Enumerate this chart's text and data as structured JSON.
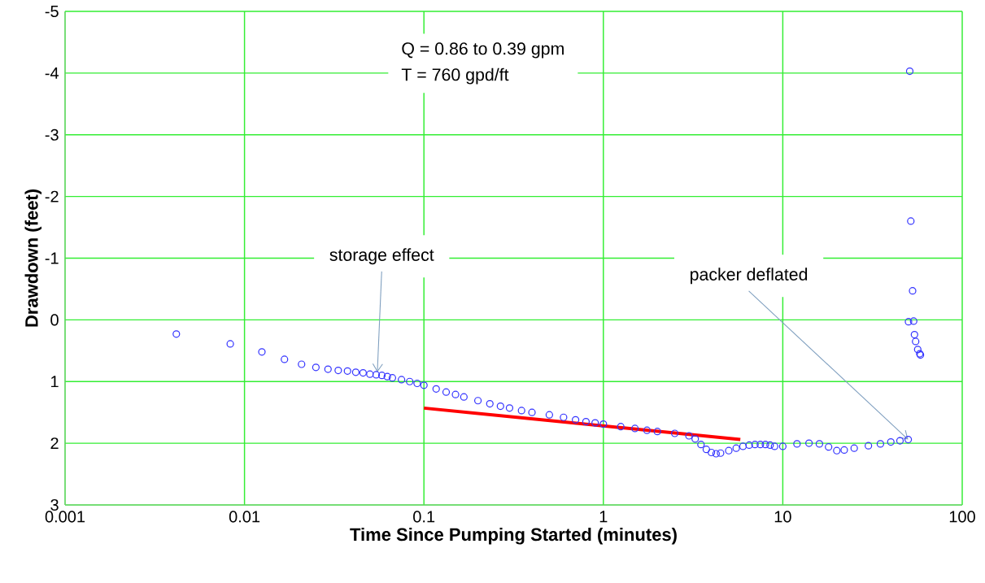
{
  "chart_data": {
    "type": "scatter",
    "xlabel": "Time Since Pumping Started (minutes)",
    "ylabel": "Drawdown (feet)",
    "log": "x",
    "grid": true,
    "marker": "circle",
    "xlim": [
      0.001,
      100
    ],
    "xticks": [
      0.001,
      0.01,
      0.1,
      1,
      10,
      100
    ],
    "ylim": [
      3,
      -5
    ],
    "yticks": [
      -5,
      -4,
      -3,
      -2,
      -1,
      0,
      1,
      2,
      3
    ],
    "annotations": [
      "Q = 0.86 to 0.39 gpm",
      "T = 760 gpd/ft",
      {
        "text": "storage effect",
        "x": 0.055,
        "y": 0.85
      },
      {
        "text": "packer deflated",
        "x": 50,
        "y": 1.94
      }
    ],
    "series": [
      {
        "color": "#3333ff",
        "x": [
          0.00417,
          0.00833,
          0.0125,
          0.0167,
          0.0208,
          0.025,
          0.0292,
          0.0333,
          0.0375,
          0.0417,
          0.0458,
          0.05,
          0.0542,
          0.0583,
          0.0625,
          0.0667,
          0.075,
          0.0833,
          0.0917,
          0.1,
          0.117,
          0.133,
          0.15,
          0.167,
          0.2,
          0.233,
          0.267,
          0.3,
          0.35,
          0.4,
          0.5,
          0.6,
          0.7,
          0.8,
          0.9,
          1,
          1.25,
          1.5,
          1.75,
          2,
          2.5,
          3,
          3.25,
          3.5,
          3.75,
          4,
          4.25,
          4.5,
          5,
          5.5,
          6,
          6.5,
          7,
          7.5,
          8,
          8.5,
          9,
          10,
          12,
          14,
          16,
          18,
          20,
          22,
          25,
          30,
          35,
          40,
          45,
          50,
          51,
          51.7,
          52.9,
          50.2,
          53.6,
          54.2,
          55,
          56.5,
          58,
          58.5
        ],
        "values": [
          0.23,
          0.39,
          0.52,
          0.64,
          0.72,
          0.77,
          0.8,
          0.82,
          0.83,
          0.85,
          0.86,
          0.88,
          0.89,
          0.9,
          0.92,
          0.94,
          0.97,
          1.0,
          1.03,
          1.06,
          1.12,
          1.17,
          1.21,
          1.25,
          1.31,
          1.36,
          1.4,
          1.43,
          1.47,
          1.5,
          1.54,
          1.58,
          1.62,
          1.65,
          1.67,
          1.69,
          1.73,
          1.76,
          1.79,
          1.81,
          1.84,
          1.88,
          1.93,
          2.02,
          2.1,
          2.15,
          2.17,
          2.16,
          2.12,
          2.08,
          2.05,
          2.03,
          2.02,
          2.02,
          2.02,
          2.03,
          2.05,
          2.05,
          2.01,
          2.0,
          2.01,
          2.06,
          2.12,
          2.11,
          2.08,
          2.04,
          2.01,
          1.98,
          1.96,
          1.94,
          -4.03,
          -1.6,
          -0.47,
          0.03,
          0.02,
          0.24,
          0.35,
          0.48,
          0.55,
          0.57
        ]
      },
      {
        "type": "line",
        "color": "#ff0000",
        "marker": "none",
        "x": [
          0.1,
          5.8
        ],
        "values": [
          1.43,
          1.94
        ]
      }
    ]
  }
}
